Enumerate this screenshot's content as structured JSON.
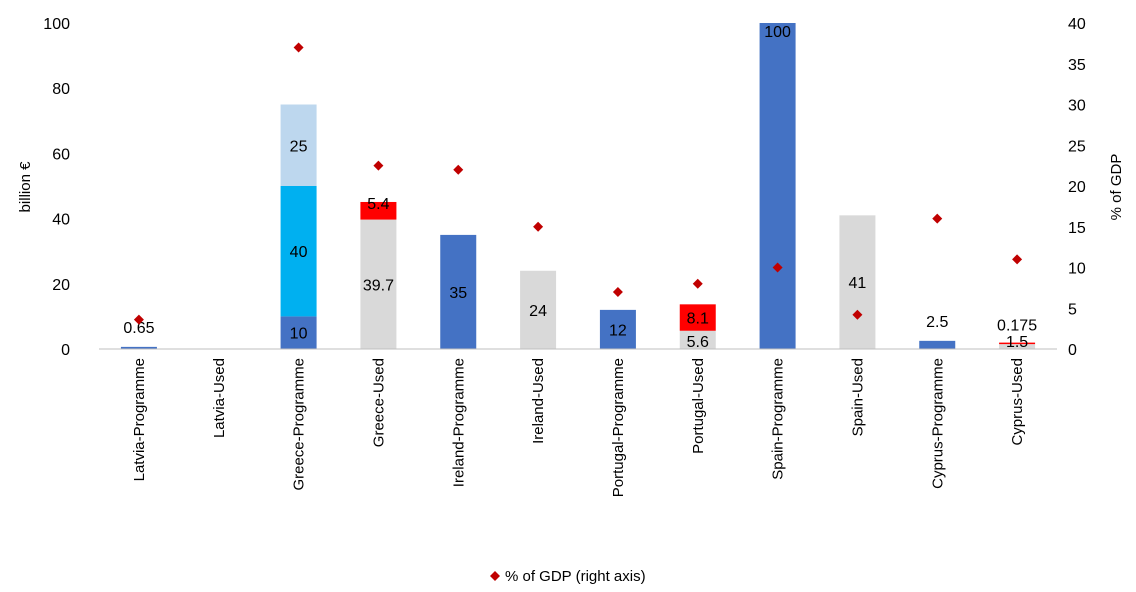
{
  "chart_data": {
    "type": "bar",
    "stacked": true,
    "categories": [
      "Latvia-Programme",
      "Latvia-Used",
      "Greece-Programme",
      "Greece-Used",
      "Ireland-Programme",
      "Ireland-Used",
      "Portugal-Programme",
      "Portugal-Used",
      "Spain-Programme",
      "Spain-Used",
      "Cyprus-Programme",
      "Cyprus-Used"
    ],
    "series": [
      {
        "values": [
          0.65,
          0,
          10,
          0,
          35,
          0,
          12,
          0,
          100,
          0,
          2.5,
          0
        ],
        "color": "#4472C4"
      },
      {
        "values": [
          0,
          0,
          40,
          0,
          0,
          0,
          0,
          0,
          0,
          0,
          0,
          0
        ],
        "color": "#00B0F0"
      },
      {
        "values": [
          0,
          0,
          25,
          0,
          0,
          0,
          0,
          0,
          0,
          0,
          0,
          0
        ],
        "color": "#BDD7EE"
      },
      {
        "values": [
          0,
          0,
          0,
          39.7,
          0,
          24,
          0,
          5.6,
          0,
          41,
          0,
          1.5
        ],
        "color": "#D9D9D9"
      },
      {
        "values": [
          0,
          0,
          0,
          5.4,
          0,
          0,
          0,
          8.1,
          0,
          0,
          0,
          0.175
        ],
        "color": "#FF0000"
      },
      {
        "name": "% of GDP (right axis)",
        "type": "scatter",
        "axis": "right",
        "marker": "diamond",
        "color": "#C00000",
        "values": [
          3.6,
          null,
          37,
          22.5,
          22,
          15,
          7,
          8,
          10,
          4.2,
          16,
          11
        ]
      }
    ],
    "data_labels": [
      {
        "category": "Latvia-Programme",
        "text": "0.65"
      },
      {
        "category": "Greece-Programme",
        "text": "10"
      },
      {
        "category": "Greece-Programme",
        "text": "40"
      },
      {
        "category": "Greece-Programme",
        "text": "25"
      },
      {
        "category": "Greece-Used",
        "text": "39.7"
      },
      {
        "category": "Greece-Used",
        "text": "5.4"
      },
      {
        "category": "Ireland-Programme",
        "text": "35"
      },
      {
        "category": "Ireland-Used",
        "text": "24"
      },
      {
        "category": "Portugal-Programme",
        "text": "12"
      },
      {
        "category": "Portugal-Used",
        "text": "5.6"
      },
      {
        "category": "Portugal-Used",
        "text": "8.1"
      },
      {
        "category": "Spain-Programme",
        "text": "100"
      },
      {
        "category": "Spain-Used",
        "text": "41"
      },
      {
        "category": "Cyprus-Programme",
        "text": "2.5"
      },
      {
        "category": "Cyprus-Used",
        "text": "1.5"
      },
      {
        "category": "Cyprus-Used",
        "text": "0.175"
      }
    ],
    "ylabel": "billion €",
    "y2label": "% of GDP",
    "ylim": [
      0,
      100
    ],
    "y2lim": [
      0,
      40
    ],
    "yticks": [
      0,
      20,
      40,
      60,
      80,
      100
    ],
    "y2ticks": [
      0,
      5,
      10,
      15,
      20,
      25,
      30,
      35,
      40
    ],
    "grid": false,
    "legend": {
      "position": "bottom",
      "entries": [
        "% of GDP (right axis)"
      ]
    }
  }
}
